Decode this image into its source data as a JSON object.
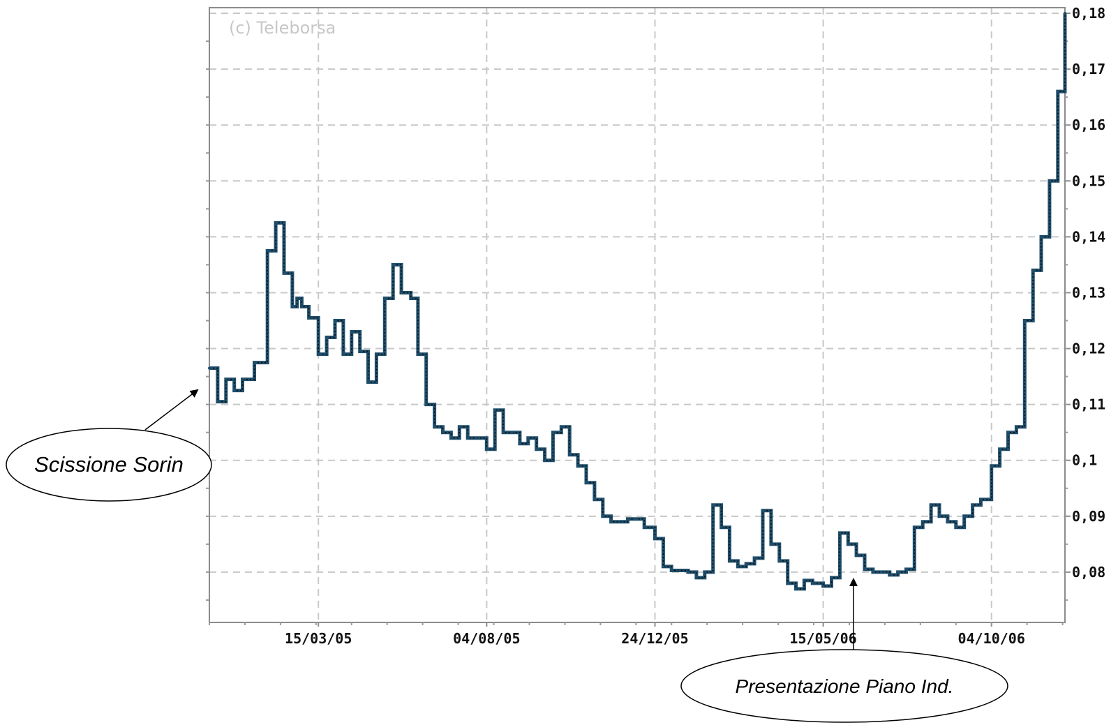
{
  "chart_data": {
    "type": "line",
    "title": "",
    "xlabel": "",
    "ylabel": "",
    "watermark": "(c) Teleborsa",
    "x_tick_labels": [
      "15/03/05",
      "04/08/05",
      "24/12/05",
      "15/05/06",
      "04/10/06"
    ],
    "y_tick_labels": [
      "0,18",
      "0,17",
      "0,16",
      "0,15",
      "0,14",
      "0,13",
      "0,12",
      "0,11",
      "0,1",
      "0,09",
      "0,08"
    ],
    "y_ticks": [
      0.18,
      0.17,
      0.16,
      0.15,
      0.14,
      0.13,
      0.12,
      0.11,
      0.1,
      0.09,
      0.08
    ],
    "ylim": [
      0.071,
      0.181
    ],
    "xlim": [
      "2004-12-13",
      "2006-12-05"
    ],
    "grid": true,
    "line_color": "#1f4e6b",
    "series": [
      {
        "x": [
          "2004-12-13",
          "2004-12-20",
          "2004-12-27",
          "2005-01-03",
          "2005-01-10",
          "2005-01-20",
          "2005-01-31",
          "2005-02-07",
          "2005-02-14",
          "2005-02-21",
          "2005-02-25",
          "2005-03-01",
          "2005-03-07",
          "2005-03-15",
          "2005-03-22",
          "2005-03-29",
          "2005-04-05",
          "2005-04-12",
          "2005-04-19",
          "2005-04-26",
          "2005-05-03",
          "2005-05-10",
          "2005-05-17",
          "2005-05-24",
          "2005-06-01",
          "2005-06-07",
          "2005-06-14",
          "2005-06-21",
          "2005-06-28",
          "2005-07-05",
          "2005-07-12",
          "2005-07-19",
          "2005-07-26",
          "2005-08-04",
          "2005-08-11",
          "2005-08-18",
          "2005-08-25",
          "2005-09-01",
          "2005-09-08",
          "2005-09-15",
          "2005-09-22",
          "2005-09-29",
          "2005-10-06",
          "2005-10-13",
          "2005-10-20",
          "2005-10-27",
          "2005-11-03",
          "2005-11-10",
          "2005-11-17",
          "2005-11-24",
          "2005-12-01",
          "2005-12-08",
          "2005-12-15",
          "2005-12-24",
          "2005-12-31",
          "2006-01-07",
          "2006-01-14",
          "2006-01-21",
          "2006-01-28",
          "2006-02-04",
          "2006-02-11",
          "2006-02-18",
          "2006-02-25",
          "2006-03-04",
          "2006-03-11",
          "2006-03-18",
          "2006-03-25",
          "2006-04-01",
          "2006-04-08",
          "2006-04-15",
          "2006-04-22",
          "2006-04-29",
          "2006-05-06",
          "2006-05-15",
          "2006-05-22",
          "2006-05-29",
          "2006-06-05",
          "2006-06-12",
          "2006-06-19",
          "2006-06-26",
          "2006-07-03",
          "2006-07-10",
          "2006-07-17",
          "2006-07-24",
          "2006-07-31",
          "2006-08-07",
          "2006-08-14",
          "2006-08-21",
          "2006-08-28",
          "2006-09-04",
          "2006-09-11",
          "2006-09-18",
          "2006-09-25",
          "2006-10-04",
          "2006-10-11",
          "2006-10-18",
          "2006-10-25",
          "2006-11-01",
          "2006-11-08",
          "2006-11-15",
          "2006-11-22",
          "2006-11-29",
          "2006-12-05"
        ],
        "y": [
          0.1165,
          0.1105,
          0.1145,
          0.1125,
          0.1145,
          0.1175,
          0.1375,
          0.1425,
          0.1335,
          0.1275,
          0.129,
          0.1275,
          0.1255,
          0.119,
          0.122,
          0.125,
          0.119,
          0.123,
          0.1195,
          0.114,
          0.119,
          0.129,
          0.135,
          0.13,
          0.129,
          0.119,
          0.11,
          0.106,
          0.105,
          0.104,
          0.106,
          0.104,
          0.104,
          0.102,
          0.109,
          0.105,
          0.105,
          0.103,
          0.104,
          0.102,
          0.1,
          0.105,
          0.106,
          0.101,
          0.099,
          0.096,
          0.093,
          0.09,
          0.089,
          0.089,
          0.0895,
          0.0895,
          0.088,
          0.086,
          0.081,
          0.0803,
          0.0803,
          0.08,
          0.079,
          0.08,
          0.092,
          0.088,
          0.082,
          0.081,
          0.0815,
          0.0825,
          0.091,
          0.085,
          0.082,
          0.078,
          0.077,
          0.0785,
          0.078,
          0.0775,
          0.079,
          0.087,
          0.085,
          0.083,
          0.0805,
          0.08,
          0.08,
          0.0795,
          0.08,
          0.0805,
          0.088,
          0.089,
          0.092,
          0.09,
          0.089,
          0.088,
          0.09,
          0.092,
          0.093,
          0.099,
          0.102,
          0.105,
          0.106,
          0.125,
          0.134,
          0.14,
          0.15,
          0.166,
          0.18
        ]
      }
    ],
    "annotations": [
      {
        "text": "Scissione Sorin",
        "arrow_target": {
          "x": "2004-12-13",
          "y": 0.114
        }
      },
      {
        "text": "Presentazione Piano Ind.",
        "arrow_target": {
          "x": "2006-06-01",
          "y": 0.0785
        }
      }
    ]
  }
}
